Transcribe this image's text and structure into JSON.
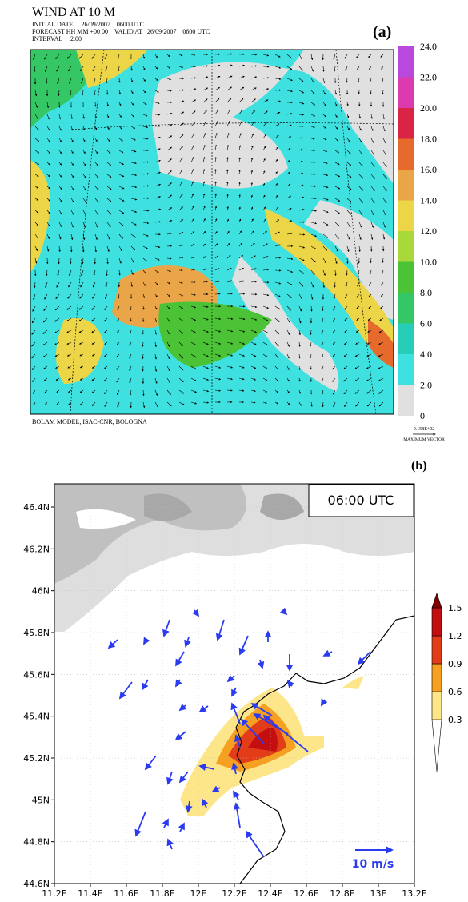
{
  "panel_a": {
    "title": "WIND AT 10 M",
    "line1": "INITIAL DATE     26/09/2007    0600 UTC",
    "line2": "FORECAST HH MM +00 00    VALID AT   26/09/2007    0600 UTC",
    "line3": "INTERVAL     2.00",
    "label": "(a)",
    "footer": "BOLAM MODEL, ISAC-CNR, BOLOGNA",
    "max_vector_value": "0.158E+02",
    "max_vector_label": "MAXIMUM VECTOR",
    "colorbar": {
      "ticks": [
        0,
        {
          "value": 2,
          "label": "2.0"
        },
        {
          "value": 4,
          "label": "4.0"
        },
        {
          "value": 6,
          "label": "6.0"
        },
        {
          "value": 8,
          "label": "8.0"
        },
        {
          "value": 10,
          "label": "10.0"
        },
        {
          "value": 12,
          "label": "12.0"
        },
        {
          "value": 14,
          "label": "14.0"
        },
        {
          "value": 16,
          "label": "16.0"
        },
        {
          "value": 18,
          "label": "18.0"
        },
        {
          "value": 20,
          "label": "20.0"
        },
        {
          "value": 22,
          "label": "22.0"
        },
        {
          "value": 24,
          "label": "24.0"
        }
      ],
      "colors": [
        "#e0e0e0",
        "#3ee0e0",
        "#28cdb8",
        "#35c765",
        "#4cc236",
        "#a8d83a",
        "#ecd546",
        "#eaa548",
        "#e56a2c",
        "#d92446",
        "#dc3aae",
        "#b949dd"
      ]
    }
  },
  "panel_b": {
    "label": "(b)",
    "time": "06:00 UTC",
    "scale_label": "10 m/s",
    "xticks": [
      {
        "value": 11.2,
        "label": "11.2E"
      },
      {
        "value": 11.4,
        "label": "11.4E"
      },
      {
        "value": 11.6,
        "label": "11.6E"
      },
      {
        "value": 11.8,
        "label": "11.8E"
      },
      {
        "value": 12,
        "label": "12E"
      },
      {
        "value": 12.2,
        "label": "12.2E"
      },
      {
        "value": 12.4,
        "label": "12.4E"
      },
      {
        "value": 12.6,
        "label": "12.6E"
      },
      {
        "value": 12.8,
        "label": "12.8E"
      },
      {
        "value": 13,
        "label": "13E"
      },
      {
        "value": 13.2,
        "label": "13.2E"
      }
    ],
    "yticks": [
      {
        "value": 44.6,
        "label": "44.6N"
      },
      {
        "value": 44.8,
        "label": "44.8N"
      },
      {
        "value": 45,
        "label": "45N"
      },
      {
        "value": 45.2,
        "label": "45.2N"
      },
      {
        "value": 45.4,
        "label": "45.4N"
      },
      {
        "value": 45.6,
        "label": "45.6N"
      },
      {
        "value": 45.8,
        "label": "45.8N"
      },
      {
        "value": 46,
        "label": "46N"
      },
      {
        "value": 46.2,
        "label": "46.2N"
      },
      {
        "value": 46.4,
        "label": "46.4N"
      }
    ],
    "colorbar": {
      "ticks": [
        0.3,
        0.6,
        0.9,
        1.2,
        1.5
      ],
      "colors": [
        "#ffffff",
        "#fde58a",
        "#f5a020",
        "#e23c18",
        "#c40f10",
        "#800000"
      ]
    }
  }
}
